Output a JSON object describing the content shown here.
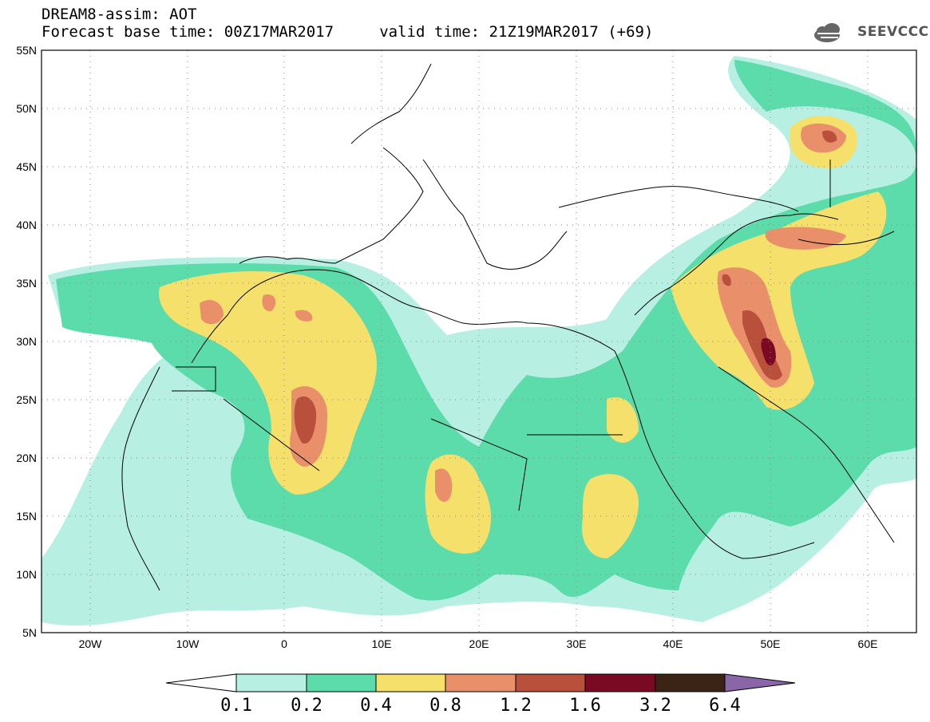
{
  "header": {
    "line1": "DREAM8-assim: AOT",
    "line2": "Forecast base time: 00Z17MAR2017     valid time: 21Z19MAR2017 (+69)"
  },
  "logo": {
    "text": "SEEVCCC",
    "icon": "cloud-logo-icon"
  },
  "map": {
    "lon_range": [
      -25,
      65
    ],
    "lat_range": [
      5,
      55
    ],
    "lat_labels": [
      "55N",
      "50N",
      "45N",
      "40N",
      "35N",
      "30N",
      "25N",
      "20N",
      "15N",
      "10N",
      "5N"
    ],
    "lon_labels": [
      "20W",
      "10W",
      "0",
      "10E",
      "20E",
      "30E",
      "40E",
      "50E",
      "60E"
    ],
    "grid": "dotted"
  },
  "colorbar": {
    "labels": [
      "0.1",
      "0.2",
      "0.4",
      "0.8",
      "1.2",
      "1.6",
      "3.2",
      "6.4"
    ],
    "colors": [
      "#ffffff",
      "#b7efe3",
      "#5cdcaa",
      "#f5e06b",
      "#e9906a",
      "#b8503c",
      "#7a0a24",
      "#3b2416",
      "#8a66a8"
    ]
  }
}
